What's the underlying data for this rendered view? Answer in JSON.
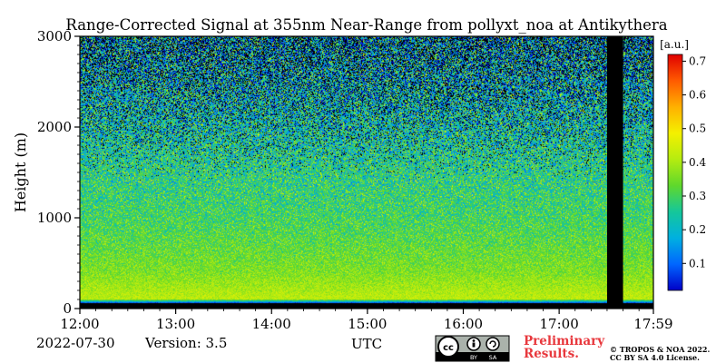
{
  "chart_data": {
    "type": "heatmap",
    "title": "Range-Corrected Signal at 355nm Near-Range from pollyxt_noa at Antikythera",
    "ylabel": "Height (m)",
    "xlabel": "UTC",
    "x_ticks": [
      "12:00",
      "13:00",
      "14:00",
      "15:00",
      "16:00",
      "17:00",
      "17:59"
    ],
    "x_range": [
      "12:00",
      "17:59"
    ],
    "y_ticks": [
      0,
      1000,
      2000,
      3000
    ],
    "y_range": [
      0,
      3000
    ],
    "colorbar": {
      "unit": "[a.u.]",
      "range": [
        0.02,
        0.72
      ],
      "ticks": [
        0.1,
        0.2,
        0.3,
        0.4,
        0.5,
        0.6,
        0.7
      ],
      "colors": [
        "#0000c8",
        "#0066ff",
        "#00b0e0",
        "#15c79a",
        "#5fd82c",
        "#b5ec10",
        "#f4f000",
        "#ffb000",
        "#ff5a00",
        "#e00000"
      ]
    },
    "no_data_interval": [
      "17:30",
      "17:40"
    ],
    "signal_profile": [
      {
        "height": 50,
        "value": 0.02
      },
      {
        "height": 100,
        "value": 0.42
      },
      {
        "height": 200,
        "value": 0.4
      },
      {
        "height": 400,
        "value": 0.36
      },
      {
        "height": 700,
        "value": 0.33
      },
      {
        "height": 1000,
        "value": 0.3
      },
      {
        "height": 1500,
        "value": 0.27
      },
      {
        "height": 2000,
        "value": 0.23
      },
      {
        "height": 2500,
        "value": 0.2
      },
      {
        "height": 3000,
        "value": 0.18
      }
    ]
  },
  "footer": {
    "date": "2022-07-30",
    "version": "Version: 3.5",
    "preliminary_line1": "Preliminary",
    "preliminary_line2": "Results.",
    "copyright_line1": "© TROPOS & NOA 2022.",
    "copyright_line2": "CC BY SA 4.0 License.",
    "license_badge": {
      "by": "BY",
      "sa": "SA",
      "cc": "cc"
    }
  }
}
